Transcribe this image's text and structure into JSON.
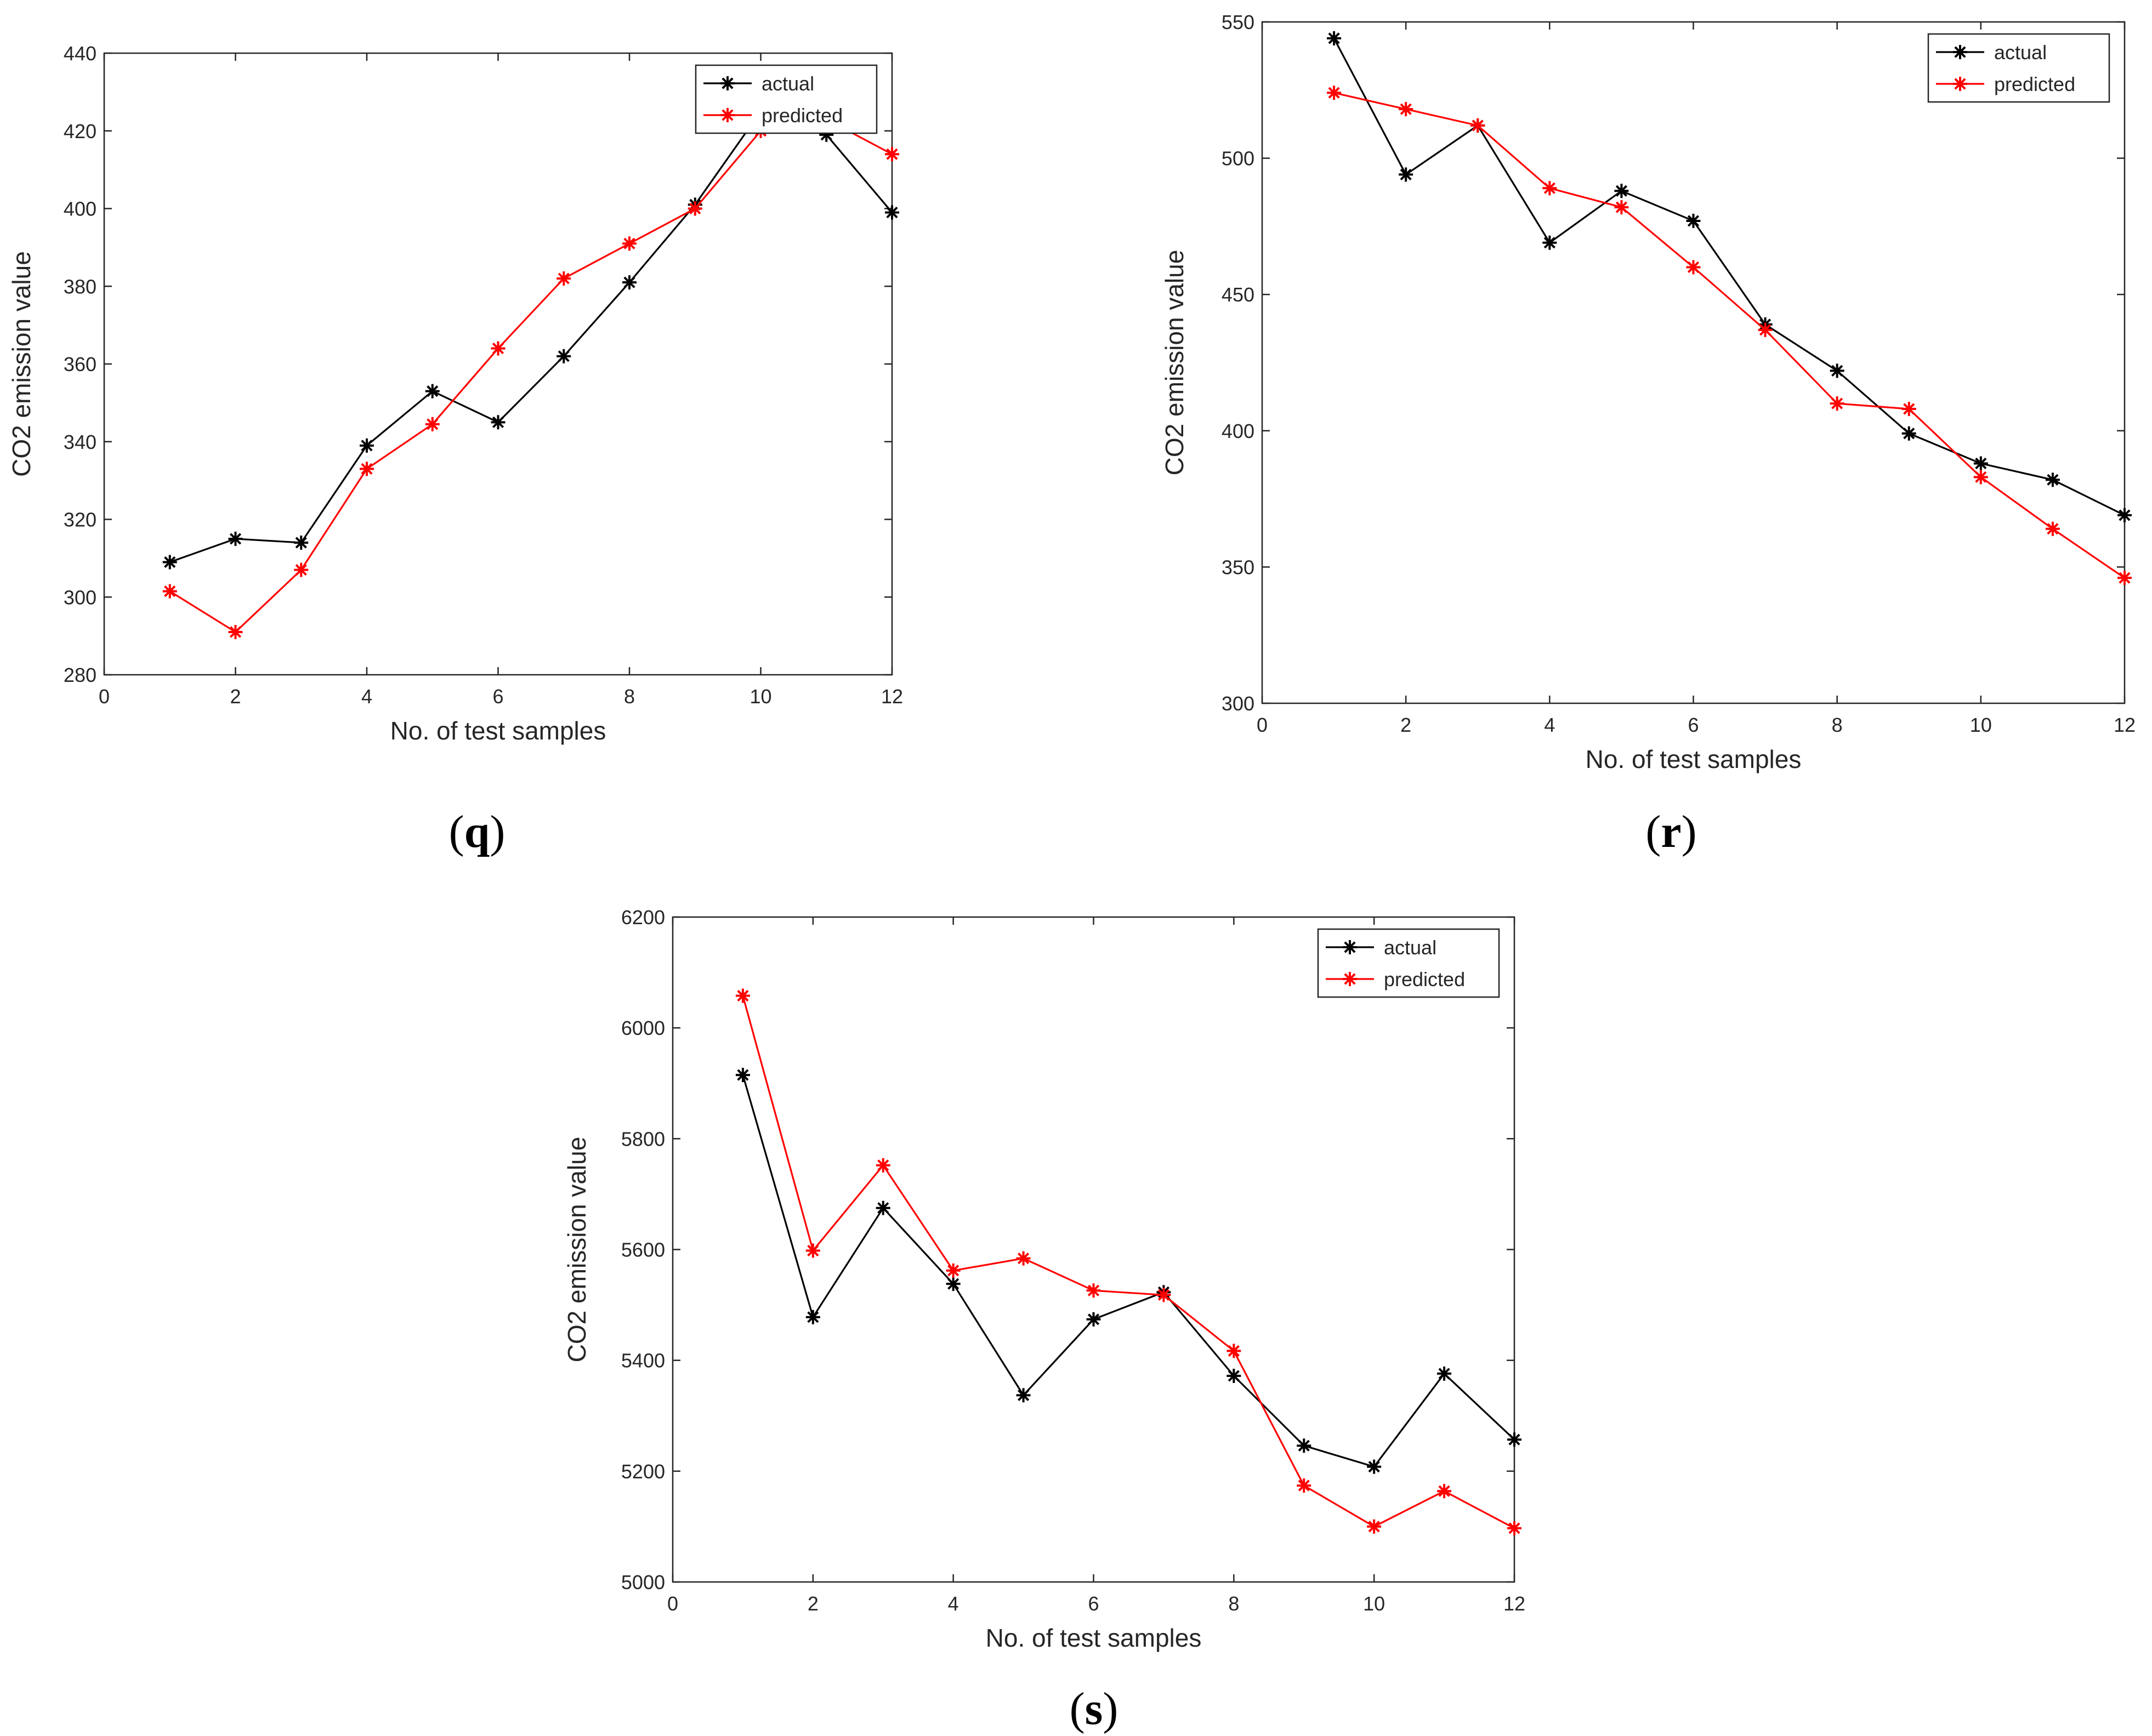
{
  "figure": {
    "panels": [
      "q",
      "r",
      "s"
    ]
  },
  "chart_data": [
    {
      "type": "line",
      "label": "(q)",
      "label_text": "q",
      "title": "",
      "xlabel": "No. of test samples",
      "ylabel": "CO2 emission value",
      "xlim": [
        0,
        12
      ],
      "ylim": [
        280,
        440
      ],
      "xticks": [
        0,
        2,
        4,
        6,
        8,
        10,
        12
      ],
      "yticks": [
        280,
        300,
        320,
        340,
        360,
        380,
        400,
        420,
        440
      ],
      "x": [
        1,
        2,
        3,
        4,
        5,
        6,
        7,
        8,
        9,
        10,
        11,
        12
      ],
      "legend_position": "top-right",
      "series": [
        {
          "name": "actual",
          "color": "#000000",
          "values": [
            309,
            315,
            314,
            339,
            353,
            345,
            362,
            381,
            401,
            425,
            419,
            399
          ]
        },
        {
          "name": "predicted",
          "color": "#ff0000",
          "values": [
            301.5,
            291,
            307,
            333,
            344.5,
            364,
            382,
            391,
            400,
            420,
            423,
            414
          ]
        }
      ]
    },
    {
      "type": "line",
      "label": "(r)",
      "label_text": "r",
      "title": "",
      "xlabel": "No. of test samples",
      "ylabel": "CO2 emission value",
      "xlim": [
        0,
        12
      ],
      "ylim": [
        300,
        550
      ],
      "xticks": [
        0,
        2,
        4,
        6,
        8,
        10,
        12
      ],
      "yticks": [
        300,
        350,
        400,
        450,
        500,
        550
      ],
      "x": [
        1,
        2,
        3,
        4,
        5,
        6,
        7,
        8,
        9,
        10,
        11,
        12
      ],
      "legend_position": "top-right",
      "series": [
        {
          "name": "actual",
          "color": "#000000",
          "values": [
            544,
            494,
            512,
            469,
            488,
            477,
            439,
            422,
            399,
            388,
            382,
            369
          ]
        },
        {
          "name": "predicted",
          "color": "#ff0000",
          "values": [
            524,
            518,
            512,
            489,
            482,
            460,
            437,
            410,
            408,
            383,
            364,
            346
          ]
        }
      ]
    },
    {
      "type": "line",
      "label": "(s)",
      "label_text": "s",
      "title": "",
      "xlabel": "No. of test samples",
      "ylabel": "CO2 emission value",
      "xlim": [
        0,
        12
      ],
      "ylim": [
        5000,
        6200
      ],
      "xticks": [
        0,
        2,
        4,
        6,
        8,
        10,
        12
      ],
      "yticks": [
        5000,
        5200,
        5400,
        5600,
        5800,
        6000,
        6200
      ],
      "x": [
        1,
        2,
        3,
        4,
        5,
        6,
        7,
        8,
        9,
        10,
        11,
        12
      ],
      "legend_position": "top-right",
      "series": [
        {
          "name": "actual",
          "color": "#000000",
          "values": [
            5915,
            5478,
            5675,
            5538,
            5337,
            5474,
            5523,
            5372,
            5246,
            5208,
            5376,
            5257
          ]
        },
        {
          "name": "predicted",
          "color": "#ff0000",
          "values": [
            6058,
            5598,
            5752,
            5562,
            5584,
            5526,
            5518,
            5417,
            5174,
            5100,
            5164,
            5097
          ]
        }
      ]
    }
  ]
}
